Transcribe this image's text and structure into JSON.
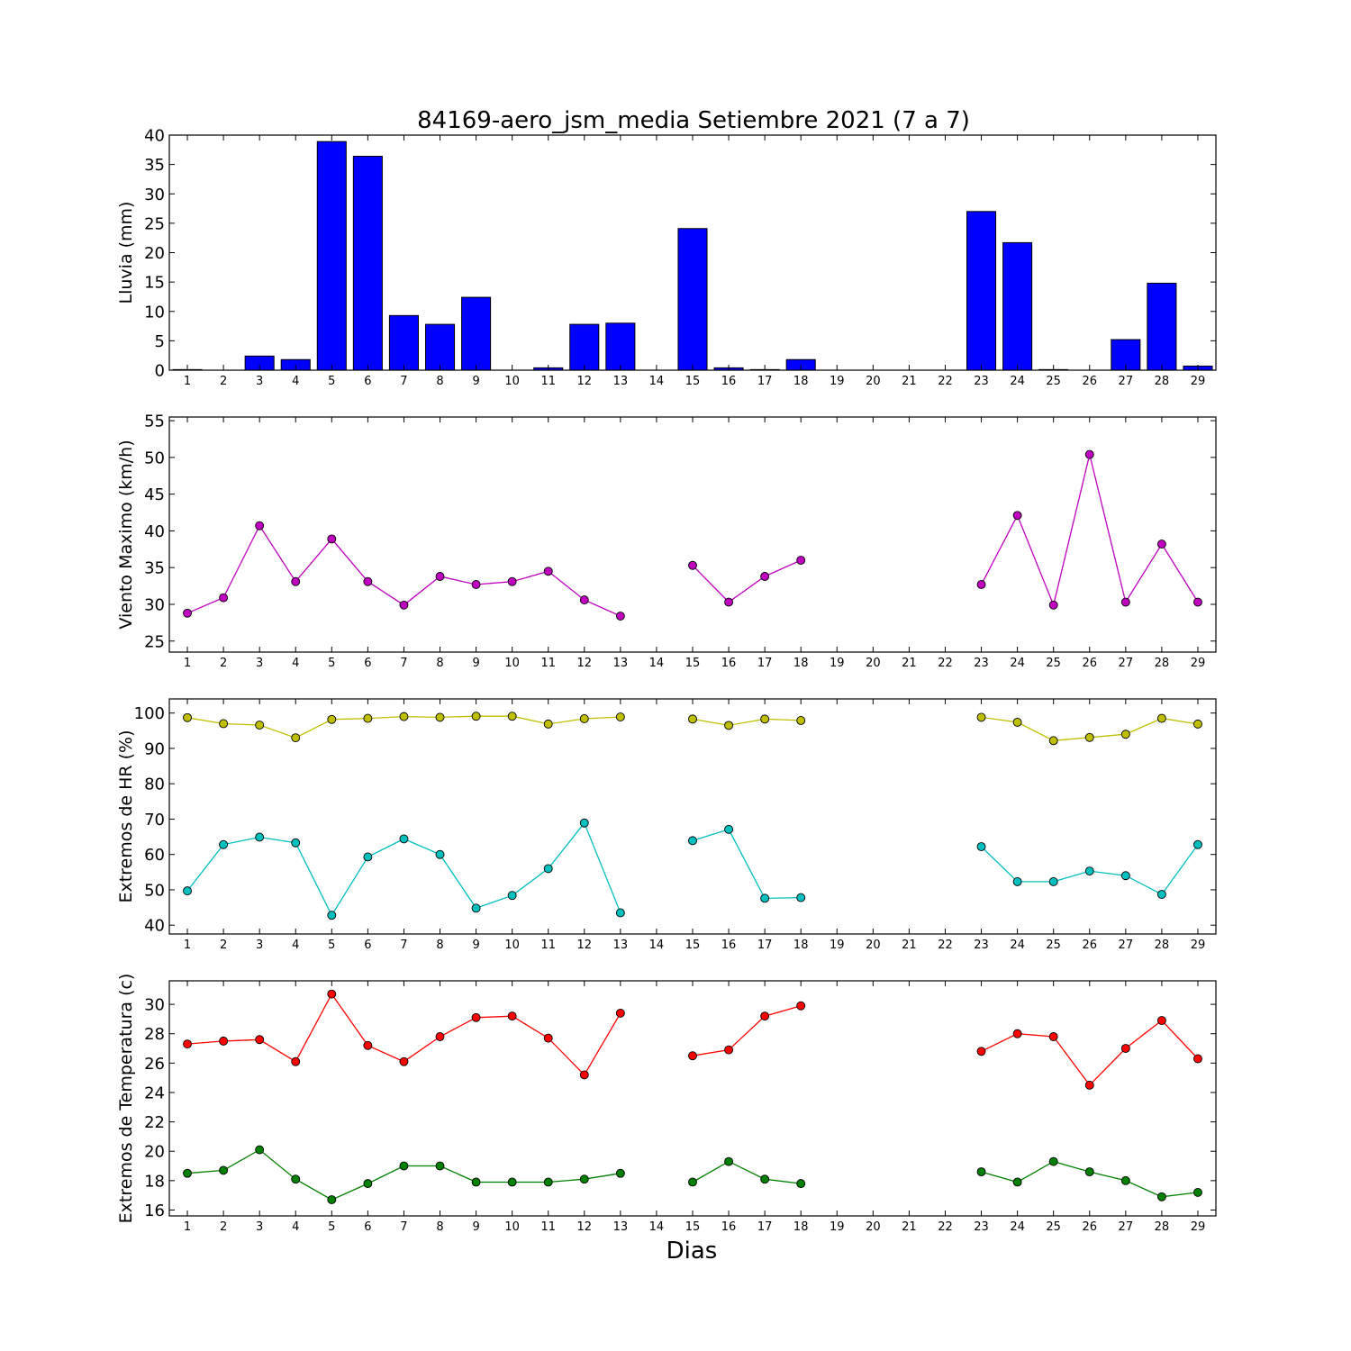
{
  "chart_data": {
    "title": "84169-aero_jsm_media Setiembre 2021  (7 a 7)",
    "xlabel": "Dias",
    "days": [
      1,
      2,
      3,
      4,
      5,
      6,
      7,
      8,
      9,
      10,
      11,
      12,
      13,
      14,
      15,
      16,
      17,
      18,
      19,
      20,
      21,
      22,
      23,
      24,
      25,
      26,
      27,
      28,
      29
    ],
    "panels": [
      {
        "type": "bar",
        "ylabel": "Lluvia (mm)",
        "ylim": [
          0,
          40
        ],
        "yticks": [
          0,
          5,
          10,
          15,
          20,
          25,
          30,
          35,
          40
        ],
        "series": [
          {
            "color": "#0000ff",
            "values": [
              0.1,
              0,
              2.4,
              1.8,
              38.9,
              36.4,
              9.3,
              7.8,
              12.4,
              0,
              0.4,
              7.8,
              8.0,
              0,
              24.1,
              0.4,
              0.1,
              1.8,
              0,
              0,
              0,
              0,
              27.0,
              21.7,
              0.1,
              0,
              5.2,
              14.8,
              0.7
            ]
          }
        ]
      },
      {
        "type": "line",
        "ylabel": "Viento Maximo (km/h)",
        "ylim": [
          23.5,
          55.5
        ],
        "yticks": [
          25,
          30,
          35,
          40,
          45,
          50,
          55
        ],
        "series": [
          {
            "color": "#bf00bf",
            "values": [
              28.8,
              30.9,
              40.7,
              33.1,
              38.9,
              33.1,
              29.9,
              33.8,
              32.7,
              33.1,
              34.5,
              30.6,
              28.4,
              null,
              35.3,
              30.3,
              33.8,
              36.0,
              null,
              null,
              null,
              null,
              32.7,
              42.1,
              29.9,
              50.4,
              30.3,
              38.2,
              30.3
            ]
          }
        ]
      },
      {
        "type": "line",
        "ylabel": "Extremos de HR (%)",
        "ylim": [
          37.5,
          104
        ],
        "yticks": [
          40,
          50,
          60,
          70,
          80,
          90,
          100
        ],
        "series": [
          {
            "color": "#bfbf00",
            "values": [
              98.7,
              97.0,
              96.6,
              93.0,
              98.2,
              98.5,
              99.0,
              98.8,
              99.1,
              99.1,
              96.9,
              98.4,
              98.9,
              null,
              98.3,
              96.5,
              98.3,
              97.9,
              null,
              null,
              null,
              null,
              98.8,
              97.4,
              92.2,
              93.1,
              94.0,
              98.5,
              96.9
            ]
          },
          {
            "color": "#00bfbf",
            "values": [
              49.7,
              62.8,
              64.9,
              63.3,
              42.8,
              59.3,
              64.4,
              60.0,
              44.8,
              48.4,
              56.0,
              68.9,
              43.5,
              null,
              63.9,
              67.1,
              47.6,
              47.8,
              null,
              null,
              null,
              null,
              62.2,
              52.3,
              52.3,
              55.3,
              54.0,
              48.7,
              62.8
            ]
          }
        ]
      },
      {
        "type": "line",
        "ylabel": "Extremos de Temperatura (c)",
        "ylim": [
          15.6,
          31.6
        ],
        "yticks": [
          16,
          18,
          20,
          22,
          24,
          26,
          28,
          30
        ],
        "series": [
          {
            "color": "#ff0000",
            "values": [
              27.3,
              27.5,
              27.6,
              26.1,
              30.7,
              27.2,
              26.1,
              27.8,
              29.1,
              29.2,
              27.7,
              25.2,
              29.4,
              null,
              26.5,
              26.9,
              29.2,
              29.9,
              null,
              null,
              null,
              null,
              26.8,
              28.0,
              27.8,
              24.5,
              27.0,
              28.9,
              26.3
            ]
          },
          {
            "color": "#008000",
            "values": [
              18.5,
              18.7,
              20.1,
              18.1,
              16.7,
              17.8,
              19.0,
              19.0,
              17.9,
              17.9,
              17.9,
              18.1,
              18.5,
              null,
              17.9,
              19.3,
              18.1,
              17.8,
              null,
              null,
              null,
              null,
              18.6,
              17.9,
              19.3,
              18.6,
              18.0,
              16.9,
              17.2
            ]
          }
        ]
      }
    ]
  }
}
